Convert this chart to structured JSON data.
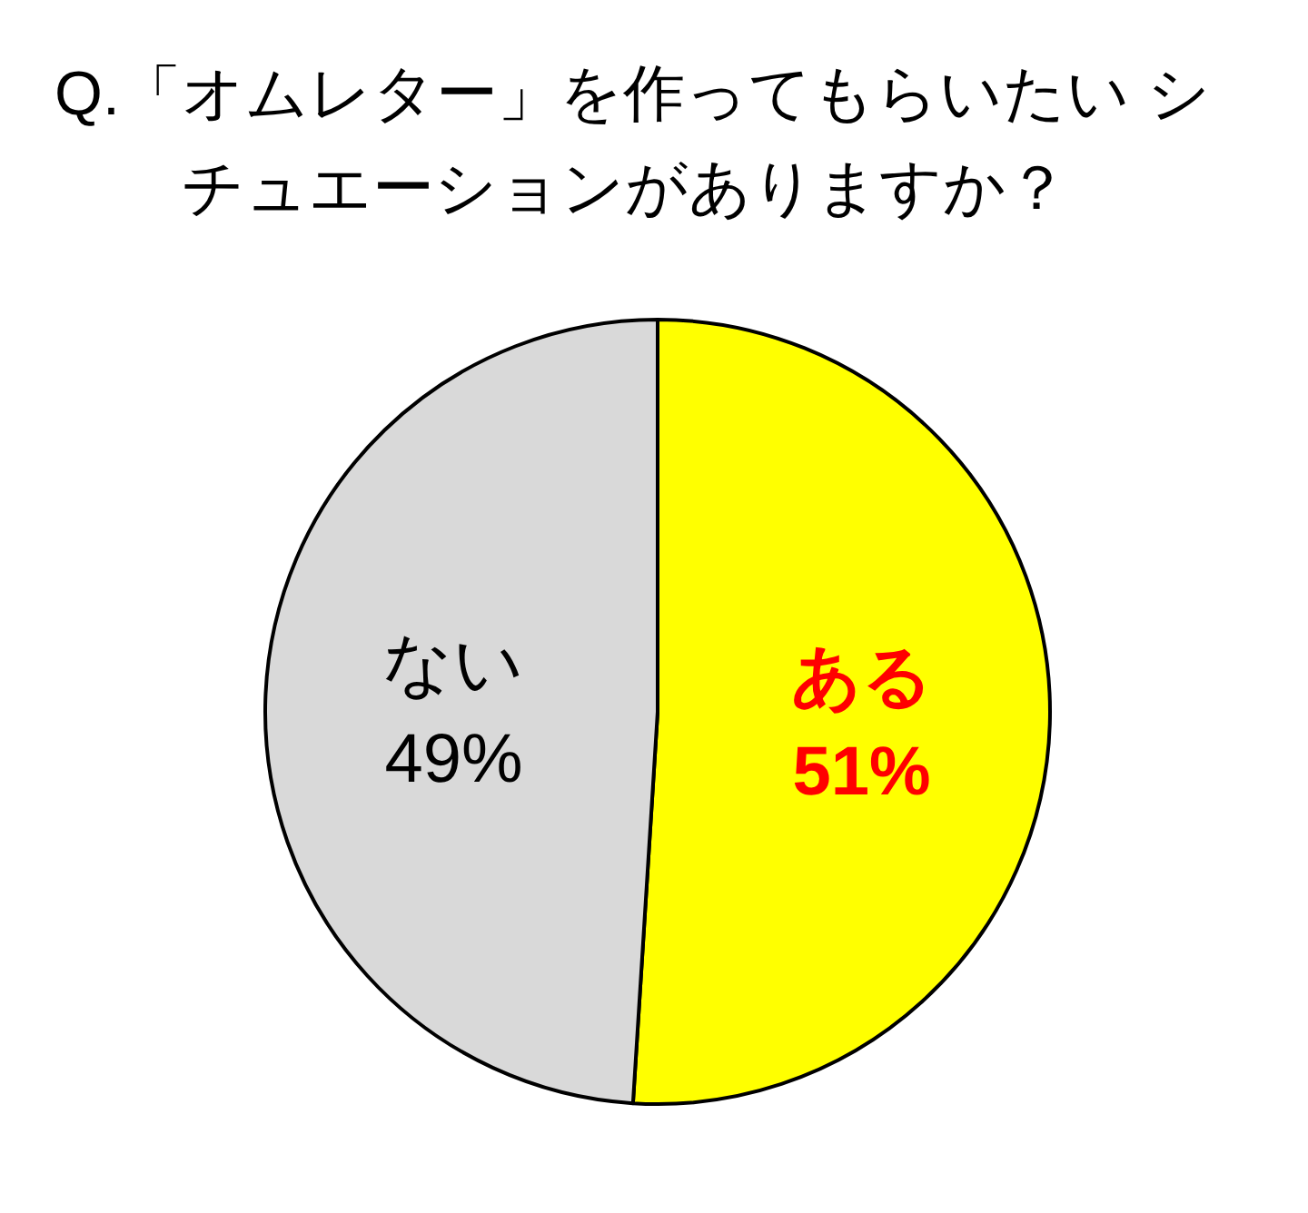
{
  "chart_data": {
    "type": "pie",
    "title": "Q.「オムレター」を作ってもらいたい シチュエーションがありますか？",
    "categories": [
      "ある",
      "ない"
    ],
    "values": [
      51,
      49
    ],
    "colors": [
      "#ffff00",
      "#d9d9d9"
    ],
    "value_labels": [
      "51%",
      "49%"
    ]
  }
}
